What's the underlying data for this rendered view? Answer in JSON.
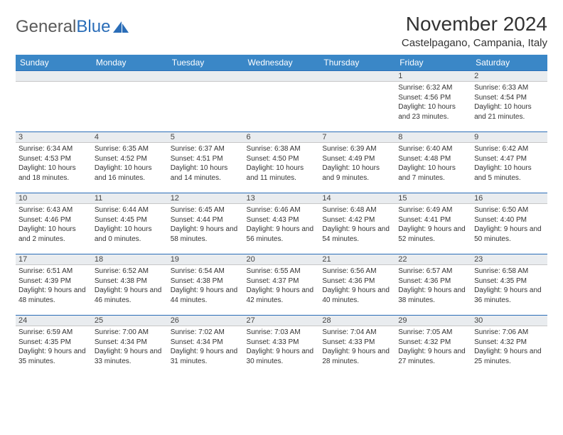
{
  "logo": {
    "word1": "General",
    "word2": "Blue"
  },
  "title": "November 2024",
  "location": "Castelpagano, Campania, Italy",
  "dayHeaders": [
    "Sunday",
    "Monday",
    "Tuesday",
    "Wednesday",
    "Thursday",
    "Friday",
    "Saturday"
  ],
  "colors": {
    "headerBg": "#3a87c7",
    "accent": "#2a6db8",
    "daybarBg": "#e9ecef",
    "text": "#333333"
  },
  "weeks": [
    [
      {
        "n": "",
        "sr": "",
        "ss": "",
        "dl": ""
      },
      {
        "n": "",
        "sr": "",
        "ss": "",
        "dl": ""
      },
      {
        "n": "",
        "sr": "",
        "ss": "",
        "dl": ""
      },
      {
        "n": "",
        "sr": "",
        "ss": "",
        "dl": ""
      },
      {
        "n": "",
        "sr": "",
        "ss": "",
        "dl": ""
      },
      {
        "n": "1",
        "sr": "Sunrise: 6:32 AM",
        "ss": "Sunset: 4:56 PM",
        "dl": "Daylight: 10 hours and 23 minutes."
      },
      {
        "n": "2",
        "sr": "Sunrise: 6:33 AM",
        "ss": "Sunset: 4:54 PM",
        "dl": "Daylight: 10 hours and 21 minutes."
      }
    ],
    [
      {
        "n": "3",
        "sr": "Sunrise: 6:34 AM",
        "ss": "Sunset: 4:53 PM",
        "dl": "Daylight: 10 hours and 18 minutes."
      },
      {
        "n": "4",
        "sr": "Sunrise: 6:35 AM",
        "ss": "Sunset: 4:52 PM",
        "dl": "Daylight: 10 hours and 16 minutes."
      },
      {
        "n": "5",
        "sr": "Sunrise: 6:37 AM",
        "ss": "Sunset: 4:51 PM",
        "dl": "Daylight: 10 hours and 14 minutes."
      },
      {
        "n": "6",
        "sr": "Sunrise: 6:38 AM",
        "ss": "Sunset: 4:50 PM",
        "dl": "Daylight: 10 hours and 11 minutes."
      },
      {
        "n": "7",
        "sr": "Sunrise: 6:39 AM",
        "ss": "Sunset: 4:49 PM",
        "dl": "Daylight: 10 hours and 9 minutes."
      },
      {
        "n": "8",
        "sr": "Sunrise: 6:40 AM",
        "ss": "Sunset: 4:48 PM",
        "dl": "Daylight: 10 hours and 7 minutes."
      },
      {
        "n": "9",
        "sr": "Sunrise: 6:42 AM",
        "ss": "Sunset: 4:47 PM",
        "dl": "Daylight: 10 hours and 5 minutes."
      }
    ],
    [
      {
        "n": "10",
        "sr": "Sunrise: 6:43 AM",
        "ss": "Sunset: 4:46 PM",
        "dl": "Daylight: 10 hours and 2 minutes."
      },
      {
        "n": "11",
        "sr": "Sunrise: 6:44 AM",
        "ss": "Sunset: 4:45 PM",
        "dl": "Daylight: 10 hours and 0 minutes."
      },
      {
        "n": "12",
        "sr": "Sunrise: 6:45 AM",
        "ss": "Sunset: 4:44 PM",
        "dl": "Daylight: 9 hours and 58 minutes."
      },
      {
        "n": "13",
        "sr": "Sunrise: 6:46 AM",
        "ss": "Sunset: 4:43 PM",
        "dl": "Daylight: 9 hours and 56 minutes."
      },
      {
        "n": "14",
        "sr": "Sunrise: 6:48 AM",
        "ss": "Sunset: 4:42 PM",
        "dl": "Daylight: 9 hours and 54 minutes."
      },
      {
        "n": "15",
        "sr": "Sunrise: 6:49 AM",
        "ss": "Sunset: 4:41 PM",
        "dl": "Daylight: 9 hours and 52 minutes."
      },
      {
        "n": "16",
        "sr": "Sunrise: 6:50 AM",
        "ss": "Sunset: 4:40 PM",
        "dl": "Daylight: 9 hours and 50 minutes."
      }
    ],
    [
      {
        "n": "17",
        "sr": "Sunrise: 6:51 AM",
        "ss": "Sunset: 4:39 PM",
        "dl": "Daylight: 9 hours and 48 minutes."
      },
      {
        "n": "18",
        "sr": "Sunrise: 6:52 AM",
        "ss": "Sunset: 4:38 PM",
        "dl": "Daylight: 9 hours and 46 minutes."
      },
      {
        "n": "19",
        "sr": "Sunrise: 6:54 AM",
        "ss": "Sunset: 4:38 PM",
        "dl": "Daylight: 9 hours and 44 minutes."
      },
      {
        "n": "20",
        "sr": "Sunrise: 6:55 AM",
        "ss": "Sunset: 4:37 PM",
        "dl": "Daylight: 9 hours and 42 minutes."
      },
      {
        "n": "21",
        "sr": "Sunrise: 6:56 AM",
        "ss": "Sunset: 4:36 PM",
        "dl": "Daylight: 9 hours and 40 minutes."
      },
      {
        "n": "22",
        "sr": "Sunrise: 6:57 AM",
        "ss": "Sunset: 4:36 PM",
        "dl": "Daylight: 9 hours and 38 minutes."
      },
      {
        "n": "23",
        "sr": "Sunrise: 6:58 AM",
        "ss": "Sunset: 4:35 PM",
        "dl": "Daylight: 9 hours and 36 minutes."
      }
    ],
    [
      {
        "n": "24",
        "sr": "Sunrise: 6:59 AM",
        "ss": "Sunset: 4:35 PM",
        "dl": "Daylight: 9 hours and 35 minutes."
      },
      {
        "n": "25",
        "sr": "Sunrise: 7:00 AM",
        "ss": "Sunset: 4:34 PM",
        "dl": "Daylight: 9 hours and 33 minutes."
      },
      {
        "n": "26",
        "sr": "Sunrise: 7:02 AM",
        "ss": "Sunset: 4:34 PM",
        "dl": "Daylight: 9 hours and 31 minutes."
      },
      {
        "n": "27",
        "sr": "Sunrise: 7:03 AM",
        "ss": "Sunset: 4:33 PM",
        "dl": "Daylight: 9 hours and 30 minutes."
      },
      {
        "n": "28",
        "sr": "Sunrise: 7:04 AM",
        "ss": "Sunset: 4:33 PM",
        "dl": "Daylight: 9 hours and 28 minutes."
      },
      {
        "n": "29",
        "sr": "Sunrise: 7:05 AM",
        "ss": "Sunset: 4:32 PM",
        "dl": "Daylight: 9 hours and 27 minutes."
      },
      {
        "n": "30",
        "sr": "Sunrise: 7:06 AM",
        "ss": "Sunset: 4:32 PM",
        "dl": "Daylight: 9 hours and 25 minutes."
      }
    ]
  ]
}
